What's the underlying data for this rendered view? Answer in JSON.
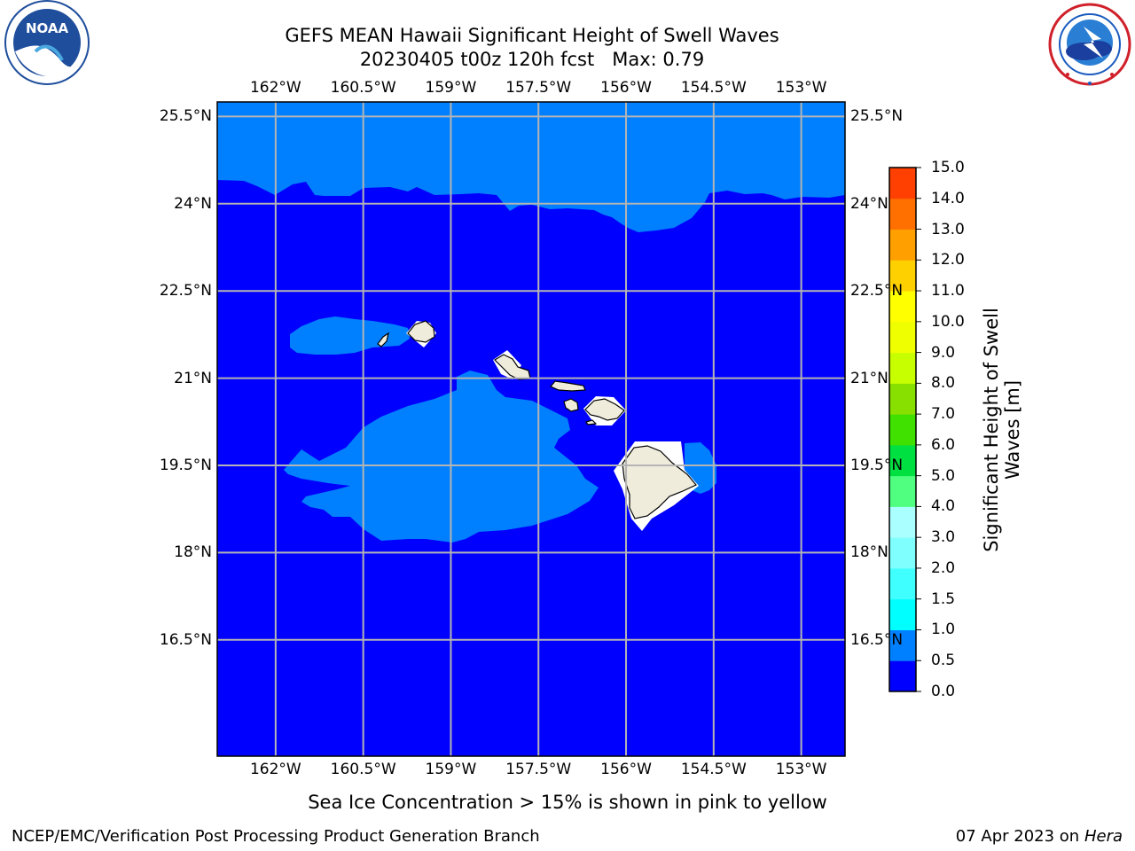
{
  "title_line1": "GEFS MEAN Hawaii Significant Height of Swell Waves",
  "title_line2": "20230405 t00z 120h fcst",
  "title_max": "Max: 0.79",
  "logo_left": {
    "name": "noaa-logo",
    "text": "NOAA",
    "ring_text": "NATIONAL OCEANIC AND ATMOSPHERIC ADMINISTRATION · U.S. DEPARTMENT OF COMMERCE"
  },
  "logo_right": {
    "name": "nws-logo",
    "ring_text": "NATIONAL WEATHER SERVICE"
  },
  "map": {
    "lon_ticks": [
      {
        "lon": -162.0,
        "label": "162°W"
      },
      {
        "lon": -160.5,
        "label": "160.5°W"
      },
      {
        "lon": -159.0,
        "label": "159°W"
      },
      {
        "lon": -157.5,
        "label": "157.5°W"
      },
      {
        "lon": -156.0,
        "label": "156°W"
      },
      {
        "lon": -154.5,
        "label": "154.5°W"
      },
      {
        "lon": -153.0,
        "label": "153°W"
      }
    ],
    "lat_ticks": [
      {
        "lat": 25.5,
        "label": "25.5°N"
      },
      {
        "lat": 24.0,
        "label": "24°N"
      },
      {
        "lat": 22.5,
        "label": "22.5°N"
      },
      {
        "lat": 21.0,
        "label": "21°N"
      },
      {
        "lat": 19.5,
        "label": "19.5°N"
      },
      {
        "lat": 18.0,
        "label": "18°N"
      },
      {
        "lat": 16.5,
        "label": "16.5°N"
      }
    ],
    "lon_range": [
      -163.0,
      -152.25
    ],
    "lat_range": [
      14.5,
      25.75
    ],
    "background_class": "0.0-0.5",
    "grid": true,
    "regions": [
      {
        "name": "north-swell-band",
        "class": "0.5-1.0"
      },
      {
        "name": "kauai-swell-patch",
        "class": "0.5-1.0"
      },
      {
        "name": "southwest-swell-plume",
        "class": "0.5-1.0"
      },
      {
        "name": "east-big-island-swell-patch",
        "class": "0.5-1.0"
      }
    ],
    "islands": [
      "Niihau",
      "Kauai",
      "Oahu",
      "Molokai",
      "Lanai",
      "Maui",
      "Kahoolawe",
      "Hawaii"
    ]
  },
  "colorbar": {
    "label_line1": "Significant Height of Swell",
    "label_line2": "Waves [m]",
    "levels": [
      "0.0",
      "0.5",
      "1.0",
      "1.5",
      "2.0",
      "3.0",
      "4.0",
      "5.0",
      "6.0",
      "7.0",
      "8.0",
      "9.0",
      "10.0",
      "11.0",
      "12.0",
      "13.0",
      "14.0",
      "15.0"
    ],
    "colors": [
      "#0000ff",
      "#0080ff",
      "#00ffff",
      "#40ffff",
      "#80ffff",
      "#a0ffff",
      "#50ff80",
      "#00e040",
      "#40e000",
      "#90e000",
      "#c8ff00",
      "#f0ff00",
      "#ffff00",
      "#ffe000",
      "#ffb000",
      "#ff8000",
      "#ff5000",
      "#ff2000",
      "#ff0000"
    ],
    "fill_colors": [
      "#0000ff",
      "#0080ff",
      "#00ffff",
      "#40ffff",
      "#80ffff",
      "#aaffff",
      "#50ff80",
      "#00e040",
      "#40e000",
      "#88e000",
      "#c8ff00",
      "#f0ff00",
      "#ffff00",
      "#ffd000",
      "#ffa000",
      "#ff7000",
      "#ff4000",
      "#ff0000"
    ]
  },
  "caption": "Sea Ice Concentration > 15% is shown in pink to yellow",
  "footer_left": "NCEP/EMC/Verification Post Processing Product Generation Branch",
  "footer_right_date": "07 Apr 2023 on",
  "footer_right_machine": "Hera",
  "colors": {
    "land": "#efecdc",
    "ocean_low": "#0000ff",
    "ocean_mid": "#0080ff",
    "grid": "#b4b4b4"
  }
}
